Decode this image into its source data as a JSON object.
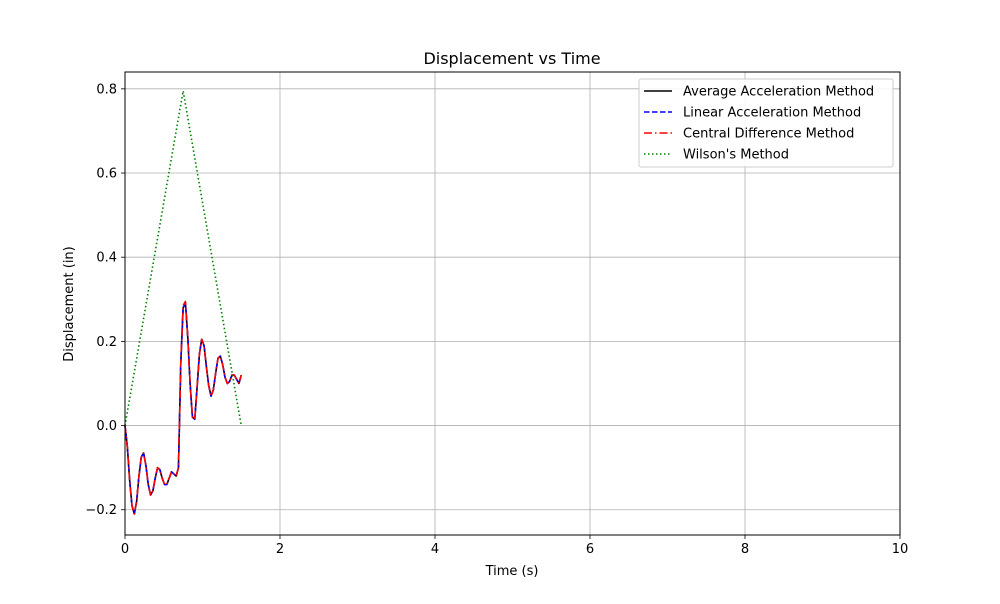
{
  "chart_data": {
    "type": "line",
    "title": "Displacement vs Time",
    "xlabel": "Time (s)",
    "ylabel": "Displacement (in)",
    "xlim": [
      0,
      10
    ],
    "ylim": [
      -0.26,
      0.84
    ],
    "xticks": [
      0,
      2,
      4,
      6,
      8,
      10
    ],
    "yticks": [
      -0.2,
      0.0,
      0.2,
      0.4,
      0.6,
      0.8
    ],
    "xtick_labels": [
      "0",
      "2",
      "4",
      "6",
      "8",
      "10"
    ],
    "ytick_labels": [
      "−0.2",
      "0.0",
      "0.2",
      "0.4",
      "0.6",
      "0.8"
    ],
    "grid": true,
    "legend_position": "top-right",
    "series": [
      {
        "name": "Average Acceleration Method",
        "color": "#000000",
        "dash": "solid",
        "x": [
          0,
          0.03,
          0.06,
          0.09,
          0.12,
          0.15,
          0.18,
          0.21,
          0.24,
          0.27,
          0.3,
          0.33,
          0.36,
          0.39,
          0.42,
          0.45,
          0.48,
          0.51,
          0.54,
          0.57,
          0.6,
          0.63,
          0.66,
          0.69,
          0.72,
          0.75,
          0.78,
          0.81,
          0.84,
          0.87,
          0.9,
          0.93,
          0.96,
          0.99,
          1.02,
          1.05,
          1.08,
          1.11,
          1.14,
          1.17,
          1.2,
          1.23,
          1.26,
          1.29,
          1.32,
          1.35,
          1.38,
          1.41,
          1.44,
          1.47,
          1.5
        ],
        "y": [
          0.0,
          -0.05,
          -0.13,
          -0.19,
          -0.21,
          -0.18,
          -0.12,
          -0.075,
          -0.065,
          -0.095,
          -0.14,
          -0.165,
          -0.155,
          -0.125,
          -0.1,
          -0.105,
          -0.125,
          -0.14,
          -0.14,
          -0.125,
          -0.11,
          -0.115,
          -0.12,
          -0.1,
          0.15,
          0.28,
          0.29,
          0.21,
          0.1,
          0.02,
          0.015,
          0.09,
          0.17,
          0.205,
          0.19,
          0.14,
          0.095,
          0.07,
          0.085,
          0.125,
          0.16,
          0.165,
          0.145,
          0.115,
          0.1,
          0.105,
          0.12,
          0.12,
          0.11,
          0.1,
          0.12
        ]
      },
      {
        "name": "Linear Acceleration Method",
        "color": "#0000ff",
        "dash": "dashed",
        "x": [
          0,
          0.03,
          0.06,
          0.09,
          0.12,
          0.15,
          0.18,
          0.21,
          0.24,
          0.27,
          0.3,
          0.33,
          0.36,
          0.39,
          0.42,
          0.45,
          0.48,
          0.51,
          0.54,
          0.57,
          0.6,
          0.63,
          0.66,
          0.69,
          0.72,
          0.75,
          0.78,
          0.81,
          0.84,
          0.87,
          0.9,
          0.93,
          0.96,
          0.99,
          1.02,
          1.05,
          1.08,
          1.11,
          1.14,
          1.17,
          1.2,
          1.23,
          1.26,
          1.29,
          1.32,
          1.35,
          1.38,
          1.41,
          1.44,
          1.47,
          1.5
        ],
        "y": [
          0.0,
          -0.05,
          -0.13,
          -0.19,
          -0.21,
          -0.18,
          -0.12,
          -0.075,
          -0.065,
          -0.095,
          -0.14,
          -0.165,
          -0.155,
          -0.125,
          -0.1,
          -0.105,
          -0.125,
          -0.14,
          -0.14,
          -0.125,
          -0.11,
          -0.115,
          -0.12,
          -0.1,
          0.15,
          0.28,
          0.29,
          0.21,
          0.1,
          0.02,
          0.015,
          0.09,
          0.17,
          0.205,
          0.19,
          0.14,
          0.095,
          0.07,
          0.085,
          0.125,
          0.16,
          0.165,
          0.145,
          0.115,
          0.1,
          0.105,
          0.12,
          0.12,
          0.11,
          0.1,
          0.12
        ]
      },
      {
        "name": "Central Difference Method",
        "color": "#ff0000",
        "dash": "dashdot",
        "x": [
          0,
          0.03,
          0.06,
          0.09,
          0.12,
          0.15,
          0.18,
          0.21,
          0.24,
          0.27,
          0.3,
          0.33,
          0.36,
          0.39,
          0.42,
          0.45,
          0.48,
          0.51,
          0.54,
          0.57,
          0.6,
          0.63,
          0.66,
          0.69,
          0.72,
          0.75,
          0.78,
          0.81,
          0.84,
          0.87,
          0.9,
          0.93,
          0.96,
          0.99,
          1.02,
          1.05,
          1.08,
          1.11,
          1.14,
          1.17,
          1.2,
          1.23,
          1.26,
          1.29,
          1.32,
          1.35,
          1.38,
          1.41,
          1.44,
          1.47,
          1.5
        ],
        "y": [
          0.0,
          -0.05,
          -0.13,
          -0.19,
          -0.21,
          -0.18,
          -0.12,
          -0.075,
          -0.065,
          -0.095,
          -0.14,
          -0.165,
          -0.155,
          -0.125,
          -0.1,
          -0.105,
          -0.125,
          -0.14,
          -0.14,
          -0.125,
          -0.11,
          -0.115,
          -0.12,
          -0.1,
          0.15,
          0.285,
          0.295,
          0.21,
          0.1,
          0.02,
          0.015,
          0.09,
          0.17,
          0.205,
          0.19,
          0.14,
          0.095,
          0.07,
          0.085,
          0.125,
          0.16,
          0.165,
          0.145,
          0.115,
          0.1,
          0.105,
          0.12,
          0.12,
          0.11,
          0.1,
          0.12
        ]
      },
      {
        "name": "Wilson's Method",
        "color": "#008000",
        "dash": "dotted",
        "x": [
          0,
          0.75,
          1.5
        ],
        "y": [
          0.0,
          0.795,
          0.0
        ]
      }
    ]
  }
}
